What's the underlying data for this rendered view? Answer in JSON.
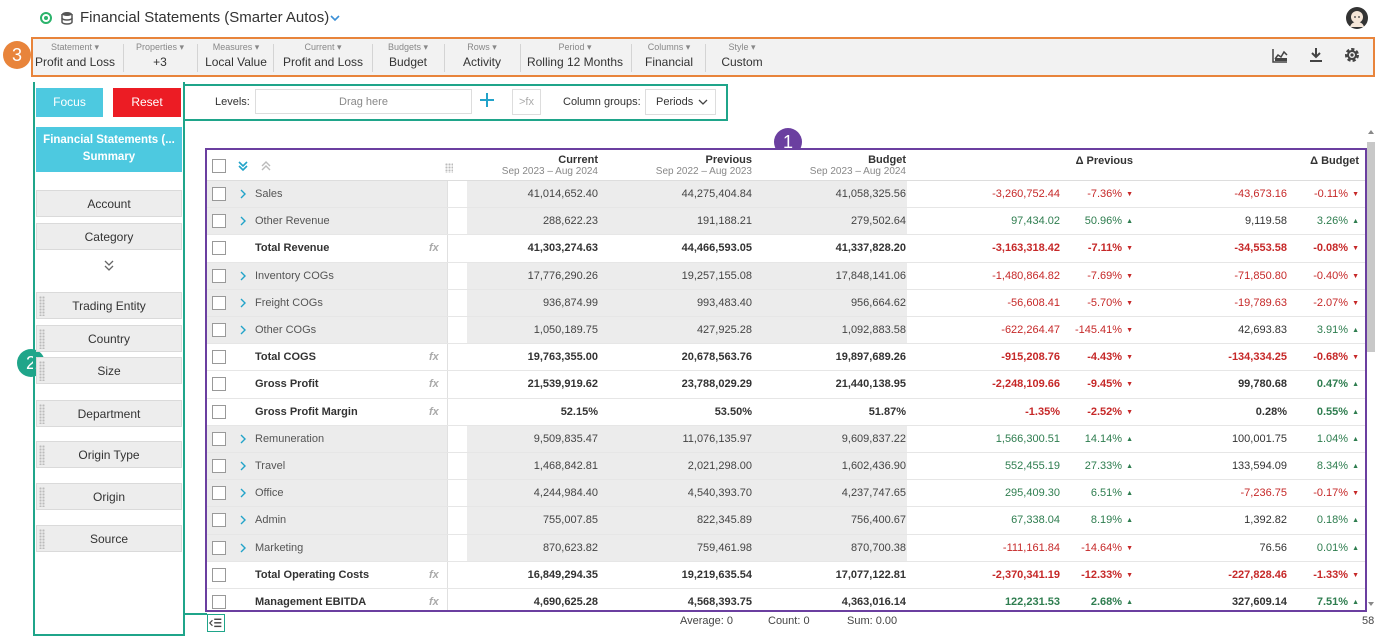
{
  "title": {
    "text": "Financial Statements (Smarter Autos)"
  },
  "toolbar": {
    "items": [
      {
        "label": "Statement",
        "value": "Profit and Loss"
      },
      {
        "label": "Properties",
        "value": "+3"
      },
      {
        "label": "Measures",
        "value": "Local Value"
      },
      {
        "label": "Current",
        "value": "Profit and Loss"
      },
      {
        "label": "Budgets",
        "value": "Budget"
      },
      {
        "label": "Rows",
        "value": "Activity"
      },
      {
        "label": "Period",
        "value": "Rolling 12 Months"
      },
      {
        "label": "Columns",
        "value": "Financial"
      },
      {
        "label": "Style",
        "value": "Custom"
      }
    ],
    "icons": [
      "chart-icon",
      "download-icon",
      "gear-icon"
    ]
  },
  "badges": {
    "one": "1",
    "two": "2",
    "three": "3"
  },
  "left_panel": {
    "focus_label": "Focus",
    "reset_label": "Reset",
    "header_line1": "Financial Statements (...",
    "header_line2": "Summary",
    "dimensions": [
      "Account",
      "Category",
      "Trading Entity",
      "Country",
      "Size",
      "Department",
      "Origin Type",
      "Origin",
      "Source"
    ]
  },
  "level_bar": {
    "levels_label": "Levels:",
    "drop_placeholder": "Drag here",
    "fx_label": ">fx",
    "column_groups_label": "Column groups:",
    "column_groups_value": "Periods"
  },
  "grid": {
    "columns": [
      {
        "title": "Current",
        "sub": "Sep 2023 – Aug 2024"
      },
      {
        "title": "Previous",
        "sub": "Sep 2022 – Aug 2023"
      },
      {
        "title": "Budget",
        "sub": "Sep 2023 – Aug 2024"
      },
      {
        "title": "Δ Previous",
        "sub": ""
      },
      {
        "title": "Δ Budget",
        "sub": ""
      }
    ],
    "rows": [
      {
        "label": "Sales",
        "expandable": true,
        "total": false,
        "fx": false,
        "current": "41,014,652.40",
        "previous": "44,275,404.84",
        "budget": "41,058,325.56",
        "dprev": "-3,260,752.44",
        "dprev_pct": "-7.36%",
        "dprev_dir": "down",
        "dbud": "-43,673.16",
        "dbud_pct": "-0.11%",
        "dbud_dir": "down"
      },
      {
        "label": "Other Revenue",
        "expandable": true,
        "total": false,
        "fx": false,
        "current": "288,622.23",
        "previous": "191,188.21",
        "budget": "279,502.64",
        "dprev": "97,434.02",
        "dprev_pct": "50.96%",
        "dprev_dir": "up",
        "dbud": "9,119.58",
        "dbud_pct": "3.26%",
        "dbud_dir": "up"
      },
      {
        "label": "Total Revenue",
        "expandable": false,
        "total": true,
        "fx": true,
        "current": "41,303,274.63",
        "previous": "44,466,593.05",
        "budget": "41,337,828.20",
        "dprev": "-3,163,318.42",
        "dprev_pct": "-7.11%",
        "dprev_dir": "down",
        "dbud": "-34,553.58",
        "dbud_pct": "-0.08%",
        "dbud_dir": "down"
      },
      {
        "label": "Inventory COGs",
        "expandable": true,
        "total": false,
        "fx": false,
        "current": "17,776,290.26",
        "previous": "19,257,155.08",
        "budget": "17,848,141.06",
        "dprev": "-1,480,864.82",
        "dprev_pct": "-7.69%",
        "dprev_dir": "down",
        "dbud": "-71,850.80",
        "dbud_pct": "-0.40%",
        "dbud_dir": "down"
      },
      {
        "label": "Freight COGs",
        "expandable": true,
        "total": false,
        "fx": false,
        "current": "936,874.99",
        "previous": "993,483.40",
        "budget": "956,664.62",
        "dprev": "-56,608.41",
        "dprev_pct": "-5.70%",
        "dprev_dir": "down",
        "dbud": "-19,789.63",
        "dbud_pct": "-2.07%",
        "dbud_dir": "down"
      },
      {
        "label": "Other COGs",
        "expandable": true,
        "total": false,
        "fx": false,
        "current": "1,050,189.75",
        "previous": "427,925.28",
        "budget": "1,092,883.58",
        "dprev": "-622,264.47",
        "dprev_pct": "-145.41%",
        "dprev_dir": "down",
        "dbud": "42,693.83",
        "dbud_pct": "3.91%",
        "dbud_dir": "up"
      },
      {
        "label": "Total COGS",
        "expandable": false,
        "total": true,
        "fx": true,
        "current": "19,763,355.00",
        "previous": "20,678,563.76",
        "budget": "19,897,689.26",
        "dprev": "-915,208.76",
        "dprev_pct": "-4.43%",
        "dprev_dir": "down",
        "dbud": "-134,334.25",
        "dbud_pct": "-0.68%",
        "dbud_dir": "down"
      },
      {
        "label": "Gross Profit",
        "expandable": false,
        "total": true,
        "fx": true,
        "current": "21,539,919.62",
        "previous": "23,788,029.29",
        "budget": "21,440,138.95",
        "dprev": "-2,248,109.66",
        "dprev_pct": "-9.45%",
        "dprev_dir": "down",
        "dbud": "99,780.68",
        "dbud_pct": "0.47%",
        "dbud_dir": "up"
      },
      {
        "label": "Gross Profit Margin",
        "expandable": false,
        "total": true,
        "fx": true,
        "current": "52.15%",
        "previous": "53.50%",
        "budget": "51.87%",
        "dprev": "-1.35%",
        "dprev_pct": "-2.52%",
        "dprev_dir": "down",
        "dbud": "0.28%",
        "dbud_pct": "0.55%",
        "dbud_dir": "up"
      },
      {
        "label": "Remuneration",
        "expandable": true,
        "total": false,
        "fx": false,
        "current": "9,509,835.47",
        "previous": "11,076,135.97",
        "budget": "9,609,837.22",
        "dprev": "1,566,300.51",
        "dprev_pct": "14.14%",
        "dprev_dir": "up",
        "dbud": "100,001.75",
        "dbud_pct": "1.04%",
        "dbud_dir": "up"
      },
      {
        "label": "Travel",
        "expandable": true,
        "total": false,
        "fx": false,
        "current": "1,468,842.81",
        "previous": "2,021,298.00",
        "budget": "1,602,436.90",
        "dprev": "552,455.19",
        "dprev_pct": "27.33%",
        "dprev_dir": "up",
        "dbud": "133,594.09",
        "dbud_pct": "8.34%",
        "dbud_dir": "up"
      },
      {
        "label": "Office",
        "expandable": true,
        "total": false,
        "fx": false,
        "current": "4,244,984.40",
        "previous": "4,540,393.70",
        "budget": "4,237,747.65",
        "dprev": "295,409.30",
        "dprev_pct": "6.51%",
        "dprev_dir": "up",
        "dbud": "-7,236.75",
        "dbud_pct": "-0.17%",
        "dbud_dir": "down"
      },
      {
        "label": "Admin",
        "expandable": true,
        "total": false,
        "fx": false,
        "current": "755,007.85",
        "previous": "822,345.89",
        "budget": "756,400.67",
        "dprev": "67,338.04",
        "dprev_pct": "8.19%",
        "dprev_dir": "up",
        "dbud": "1,392.82",
        "dbud_pct": "0.18%",
        "dbud_dir": "up"
      },
      {
        "label": "Marketing",
        "expandable": true,
        "total": false,
        "fx": false,
        "current": "870,623.82",
        "previous": "759,461.98",
        "budget": "870,700.38",
        "dprev": "-111,161.84",
        "dprev_pct": "-14.64%",
        "dprev_dir": "down",
        "dbud": "76.56",
        "dbud_pct": "0.01%",
        "dbud_dir": "up"
      },
      {
        "label": "Total Operating Costs",
        "expandable": false,
        "total": true,
        "fx": true,
        "current": "16,849,294.35",
        "previous": "19,219,635.54",
        "budget": "17,077,122.81",
        "dprev": "-2,370,341.19",
        "dprev_pct": "-12.33%",
        "dprev_dir": "down",
        "dbud": "-227,828.46",
        "dbud_pct": "-1.33%",
        "dbud_dir": "down"
      },
      {
        "label": "Management EBITDA",
        "expandable": false,
        "total": true,
        "fx": true,
        "current": "4,690,625.28",
        "previous": "4,568,393.75",
        "budget": "4,363,016.14",
        "dprev": "122,231.53",
        "dprev_pct": "2.68%",
        "dprev_dir": "up",
        "dbud": "327,609.14",
        "dbud_pct": "7.51%",
        "dbud_dir": "up"
      }
    ],
    "fx_label": "fx"
  },
  "footer": {
    "average": "Average: 0",
    "count": "Count: 0",
    "sum": "Sum: 0.00",
    "row_count": "58"
  },
  "colors": {
    "accent_teal": "#4dc9e0",
    "reset_red": "#ec1c24",
    "negative": "#c62828",
    "positive": "#2e7d4f",
    "outline_orange": "#e8843b",
    "outline_green": "#1fa58a",
    "outline_purple": "#6b3fa0"
  }
}
